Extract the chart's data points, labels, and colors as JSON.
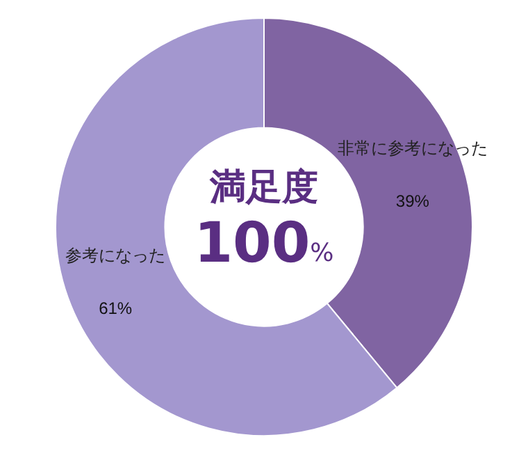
{
  "chart_data": {
    "type": "donut",
    "categories": [
      "非常に参考になった",
      "参考になった"
    ],
    "values": [
      39,
      61
    ],
    "colors": [
      "#8064a2",
      "#a397cf"
    ],
    "value_labels": [
      "39%",
      "61%"
    ],
    "annotations": [
      "満足度",
      "100%"
    ],
    "legend": false
  }
}
